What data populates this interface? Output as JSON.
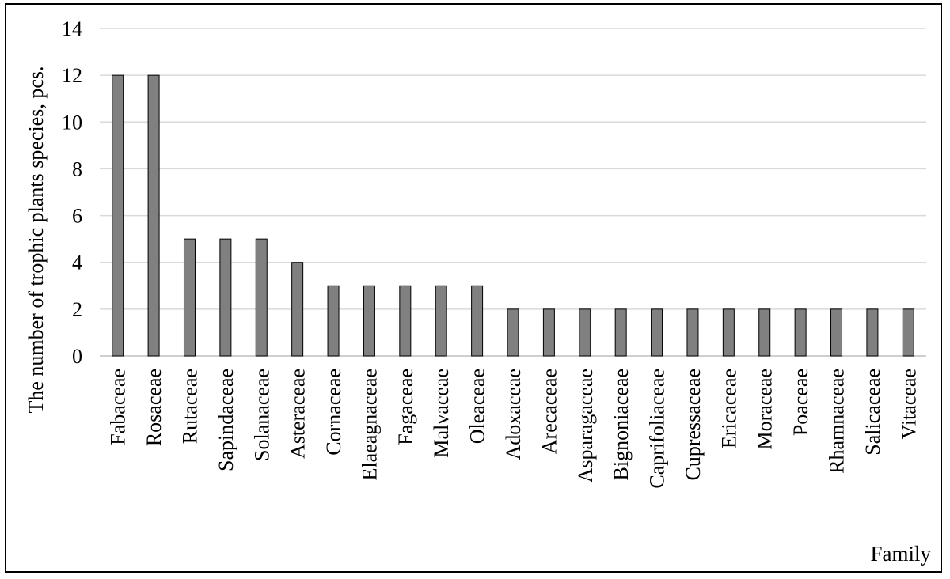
{
  "chart_data": {
    "type": "bar",
    "categories": [
      "Fabaceae",
      "Rosaceae",
      "Rutaceae",
      "Sapindaceae",
      "Solanaceae",
      "Asteraceae",
      "Cornaceae",
      "Elaeagnaceae",
      "Fagaceae",
      "Malvaceae",
      "Oleaceae",
      "Adoxaceae",
      "Arecaceae",
      "Asparagaceae",
      "Bignoniaceae",
      "Caprifoliaceae",
      "Cupressaceae",
      "Ericaceae",
      "Moraceae",
      "Poaceae",
      "Rhamnaceae",
      "Salicaceae",
      "Vitaceae"
    ],
    "values": [
      12,
      12,
      5,
      5,
      5,
      4,
      3,
      3,
      3,
      3,
      3,
      2,
      2,
      2,
      2,
      2,
      2,
      2,
      2,
      2,
      2,
      2,
      2
    ],
    "title": "",
    "xlabel": "Family",
    "ylabel": "The number of trophic plants species, pcs.",
    "ylim": [
      0,
      14
    ],
    "yticks": [
      0,
      2,
      4,
      6,
      8,
      10,
      12,
      14
    ],
    "grid": true,
    "colors": {
      "bar_fill": "#808080",
      "bar_stroke": "#000000",
      "grid": "#d9d9d9",
      "axis": "#bfbfbf"
    }
  }
}
